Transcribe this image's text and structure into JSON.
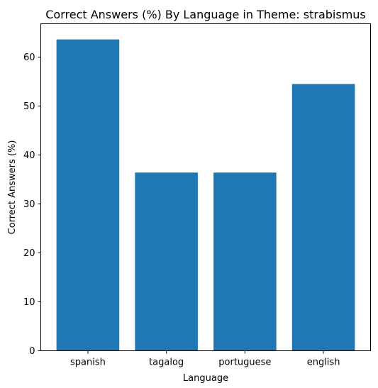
{
  "chart_data": {
    "type": "bar",
    "title": "Correct Answers (%) By Language in Theme: strabismus",
    "xlabel": "Language",
    "ylabel": "Correct Answers (%)",
    "categories": [
      "spanish",
      "tagalog",
      "portuguese",
      "english"
    ],
    "values": [
      63.6,
      36.4,
      36.4,
      54.5
    ],
    "ylim": [
      0,
      66.8
    ],
    "yticks": [
      0,
      10,
      20,
      30,
      40,
      50,
      60
    ],
    "grid": false,
    "bar_color": "#1f77b4"
  }
}
